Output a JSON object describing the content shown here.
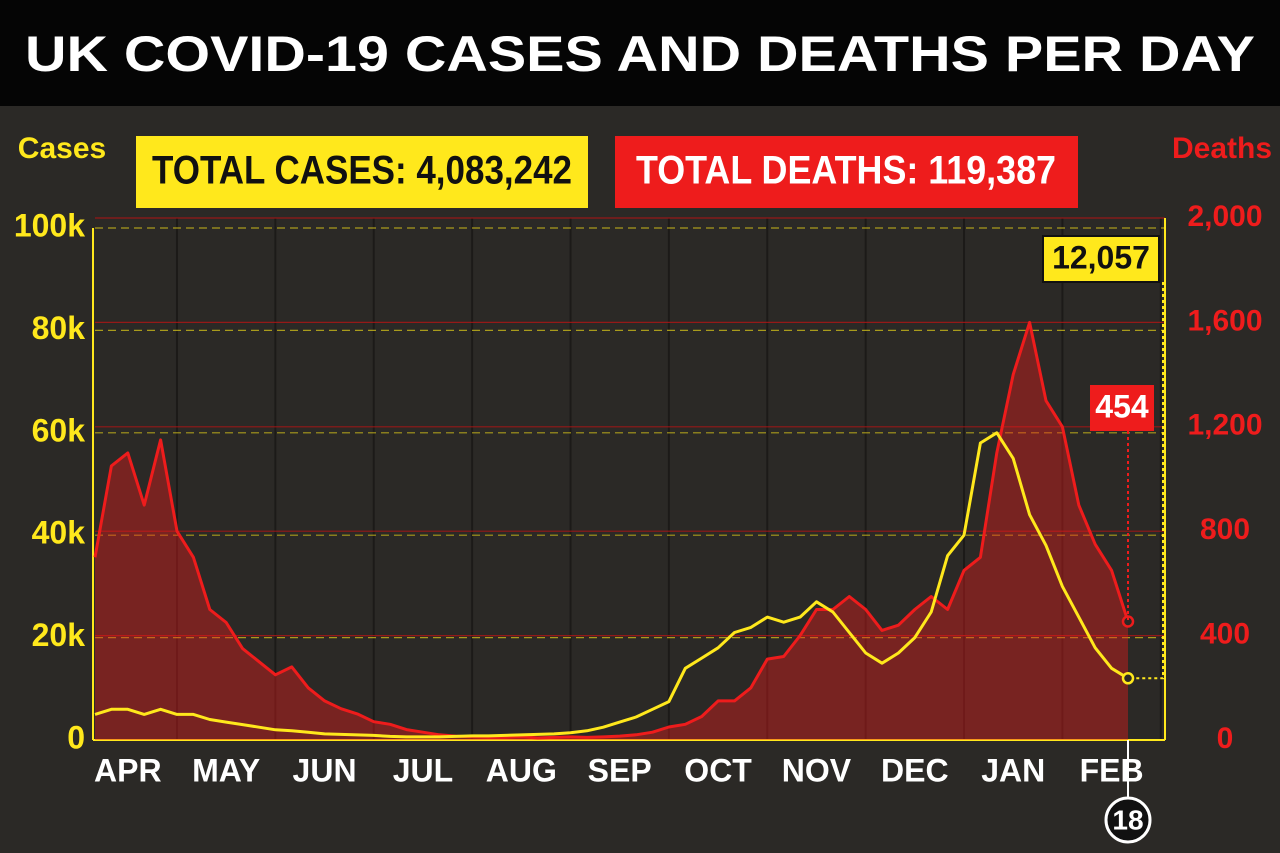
{
  "chart_data": {
    "type": "line",
    "title": "UK COVID-19 CASES AND DEATHS PER DAY",
    "y_label": "Cases",
    "y2_label": "Deaths",
    "annotations": [
      "TOTAL CASES: 4,083,242",
      "TOTAL DEATHS: 119,387"
    ],
    "end_marker_label": "18",
    "categories": [
      null,
      null,
      "APR",
      null,
      null,
      null,
      null,
      null,
      "MAY",
      null,
      null,
      null,
      null,
      null,
      "JUN",
      null,
      null,
      null,
      null,
      null,
      "JUL",
      null,
      null,
      null,
      null,
      null,
      "AUG",
      null,
      null,
      null,
      null,
      null,
      "SEP",
      null,
      null,
      null,
      null,
      null,
      "OCT",
      null,
      null,
      null,
      null,
      null,
      "NOV",
      null,
      null,
      null,
      null,
      null,
      "DEC",
      null,
      null,
      null,
      null,
      null,
      "JAN",
      null,
      null,
      null,
      null,
      null,
      "FEB",
      null
    ],
    "series": [
      {
        "name": "Cases",
        "color": "#ffe81c",
        "axis": "y",
        "values": [
          5000,
          6000,
          6000,
          5000,
          6000,
          5000,
          5000,
          4000,
          3500,
          3000,
          2500,
          2000,
          1800,
          1500,
          1200,
          1100,
          1000,
          900,
          700,
          600,
          600,
          600,
          700,
          800,
          800,
          900,
          1000,
          1100,
          1200,
          1400,
          1800,
          2500,
          3500,
          4500,
          6000,
          7500,
          14000,
          16000,
          18000,
          21000,
          22000,
          24000,
          23000,
          24000,
          27000,
          25000,
          21000,
          17000,
          15000,
          17000,
          20000,
          25000,
          36000,
          40000,
          58000,
          60000,
          55000,
          44000,
          38000,
          30000,
          24000,
          18000,
          14000,
          12057
        ],
        "value_labels": [
          null,
          null,
          null,
          null,
          null,
          null,
          null,
          null,
          null,
          null,
          null,
          null,
          null,
          null,
          null,
          null,
          null,
          null,
          null,
          null,
          null,
          null,
          null,
          null,
          null,
          null,
          null,
          null,
          null,
          null,
          null,
          null,
          null,
          null,
          null,
          null,
          null,
          null,
          null,
          null,
          null,
          null,
          null,
          null,
          null,
          null,
          null,
          null,
          null,
          null,
          null,
          null,
          null,
          null,
          null,
          null,
          null,
          null,
          null,
          null,
          null,
          null,
          null,
          "12,057"
        ]
      },
      {
        "name": "Deaths",
        "color": "#ee1c1c",
        "axis": "y2",
        "values": [
          700,
          1050,
          1100,
          900,
          1150,
          800,
          700,
          500,
          450,
          350,
          300,
          250,
          280,
          200,
          150,
          120,
          100,
          70,
          60,
          40,
          30,
          20,
          15,
          12,
          10,
          10,
          12,
          8,
          10,
          12,
          10,
          12,
          15,
          20,
          30,
          50,
          60,
          90,
          150,
          150,
          200,
          310,
          320,
          400,
          500,
          500,
          550,
          500,
          420,
          440,
          500,
          550,
          500,
          650,
          700,
          1100,
          1400,
          1600,
          1300,
          1200,
          900,
          750,
          650,
          454
        ],
        "value_labels": [
          null,
          null,
          null,
          null,
          null,
          null,
          null,
          null,
          null,
          null,
          null,
          null,
          null,
          null,
          null,
          null,
          null,
          null,
          null,
          null,
          null,
          null,
          null,
          null,
          null,
          null,
          null,
          null,
          null,
          null,
          null,
          null,
          null,
          null,
          null,
          null,
          null,
          null,
          null,
          null,
          null,
          null,
          null,
          null,
          null,
          null,
          null,
          null,
          null,
          null,
          null,
          null,
          null,
          null,
          null,
          null,
          null,
          null,
          null,
          null,
          null,
          null,
          null,
          "454"
        ]
      }
    ],
    "ylim": [
      0,
      100000
    ],
    "yticks": [
      0,
      {
        "value": 20000,
        "label": "20k"
      },
      {
        "value": 40000,
        "label": "40k"
      },
      {
        "value": 60000,
        "label": "60k"
      },
      {
        "value": 80000,
        "label": "80k"
      },
      {
        "value": 100000,
        "label": "100k"
      }
    ],
    "y2lim": [
      0,
      2000
    ],
    "y2ticks": [
      0,
      400,
      800,
      {
        "value": 1200,
        "label": "1,200"
      },
      {
        "value": 1600,
        "label": "1,600"
      },
      {
        "value": 2000,
        "label": "2,000"
      }
    ],
    "grid": true
  }
}
